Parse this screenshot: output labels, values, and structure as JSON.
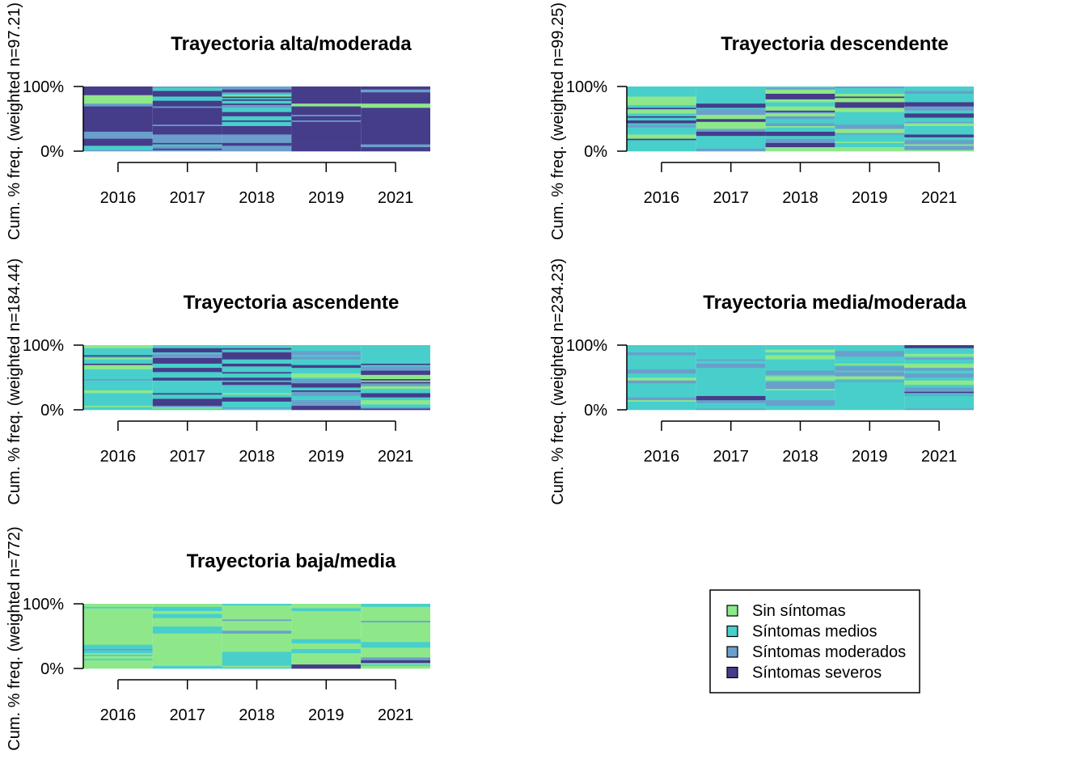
{
  "colors": {
    "Sin síntomas": "#8EE88A",
    "Síntomas medios": "#48CFCB",
    "Síntomas moderados": "#6A9FCC",
    "Síntomas severos": "#453C8A"
  },
  "legend": {
    "placement": "bottom-right",
    "items": [
      "Sin síntomas",
      "Síntomas medios",
      "Síntomas moderados",
      "Síntomas severos"
    ]
  },
  "chart_data": [
    {
      "type": "bar",
      "subtype": "sequence-index-plot",
      "title": "Trayectoria alta/moderada",
      "ylabel": "Cum. % freq. (weighted n=97.21)",
      "categories": [
        "2016",
        "2017",
        "2018",
        "2019",
        "2021"
      ],
      "yticks": [
        "0%",
        "100%"
      ],
      "ylim": [
        0,
        100
      ],
      "dominant": "Síntomas severos",
      "mix": [
        0.05,
        0.12,
        0.28,
        0.55
      ],
      "seed": 11
    },
    {
      "type": "bar",
      "subtype": "sequence-index-plot",
      "title": "Trayectoria descendente",
      "ylabel": "Cum. % freq. (weighted n=99.25)",
      "categories": [
        "2016",
        "2017",
        "2018",
        "2019",
        "2021"
      ],
      "yticks": [
        "0%",
        "100%"
      ],
      "ylim": [
        0,
        100
      ],
      "dominant": "Síntomas medios",
      "mix": [
        0.22,
        0.38,
        0.2,
        0.2
      ],
      "seed": 23
    },
    {
      "type": "bar",
      "subtype": "sequence-index-plot",
      "title": "Trayectoria ascendente",
      "ylabel": "Cum. % freq. (weighted n=184.44)",
      "categories": [
        "2016",
        "2017",
        "2018",
        "2019",
        "2021"
      ],
      "yticks": [
        "0%",
        "100%"
      ],
      "ylim": [
        0,
        100
      ],
      "dominant": "Síntomas medios",
      "mix": [
        0.15,
        0.35,
        0.2,
        0.3
      ],
      "seed": 37
    },
    {
      "type": "bar",
      "subtype": "sequence-index-plot",
      "title": "Trayectoria media/moderada",
      "ylabel": "Cum. % freq. (weighted n=234.23)",
      "categories": [
        "2016",
        "2017",
        "2018",
        "2019",
        "2021"
      ],
      "yticks": [
        "0%",
        "100%"
      ],
      "ylim": [
        0,
        100
      ],
      "dominant": "Síntomas medios",
      "mix": [
        0.12,
        0.55,
        0.3,
        0.03
      ],
      "seed": 41
    },
    {
      "type": "bar",
      "subtype": "sequence-index-plot",
      "title": "Trayectoria baja/media",
      "ylabel": "Cum. % freq. (weighted n=772)",
      "categories": [
        "2016",
        "2017",
        "2018",
        "2019",
        "2021"
      ],
      "yticks": [
        "0%",
        "100%"
      ],
      "ylim": [
        0,
        100
      ],
      "dominant": "Sin síntomas",
      "mix": [
        0.62,
        0.28,
        0.08,
        0.02
      ],
      "seed": 53
    }
  ]
}
